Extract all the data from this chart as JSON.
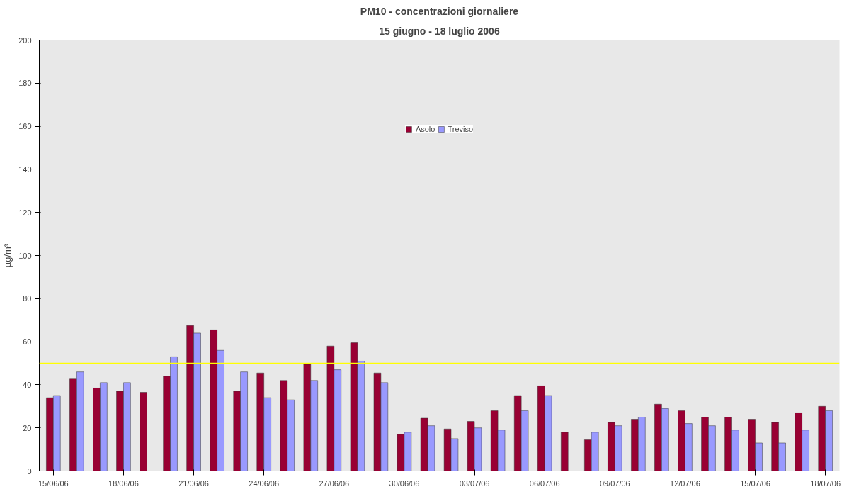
{
  "chart_data": {
    "type": "bar",
    "title": "PM10 - concentrazioni giornaliere",
    "subtitle": "15 giugno - 18 luglio 2006",
    "ylabel": "µg/m³",
    "categories": [
      "15/06/06",
      null,
      null,
      "18/06/06",
      null,
      null,
      "21/06/06",
      null,
      null,
      "24/06/06",
      null,
      null,
      "27/06/06",
      null,
      null,
      "30/06/06",
      null,
      null,
      "03/07/06",
      null,
      null,
      "06/07/06",
      null,
      null,
      "09/07/06",
      null,
      null,
      "12/07/06",
      null,
      null,
      "15/07/06",
      null,
      null,
      "18/07/06"
    ],
    "series": [
      {
        "name": "Asolo",
        "color": "#990033",
        "values": [
          34,
          43,
          38.5,
          37,
          36.5,
          44,
          67.5,
          65.5,
          37,
          45.5,
          42,
          49.5,
          58,
          59.5,
          45.5,
          17,
          24.5,
          19.5,
          23,
          28,
          35,
          39.5,
          18,
          14.5,
          22.5,
          24,
          31,
          28,
          25,
          25,
          24,
          22.5,
          27,
          30
        ]
      },
      {
        "name": "Treviso",
        "color": "#9999ff",
        "values": [
          35,
          46,
          41,
          41,
          null,
          53,
          64,
          56,
          46,
          34,
          33,
          42,
          47,
          51,
          41,
          18,
          21,
          15,
          20,
          19,
          28,
          35,
          null,
          18,
          21,
          25,
          29,
          22,
          21,
          19,
          13,
          13,
          19,
          28
        ]
      }
    ],
    "ylim": [
      0,
      200
    ],
    "yticks": [
      0,
      20,
      40,
      60,
      80,
      100,
      120,
      140,
      160,
      180,
      200
    ],
    "legend": "top",
    "ref_lines": [
      {
        "axis": "y",
        "value": 50,
        "color": "#ffff00"
      }
    ]
  }
}
